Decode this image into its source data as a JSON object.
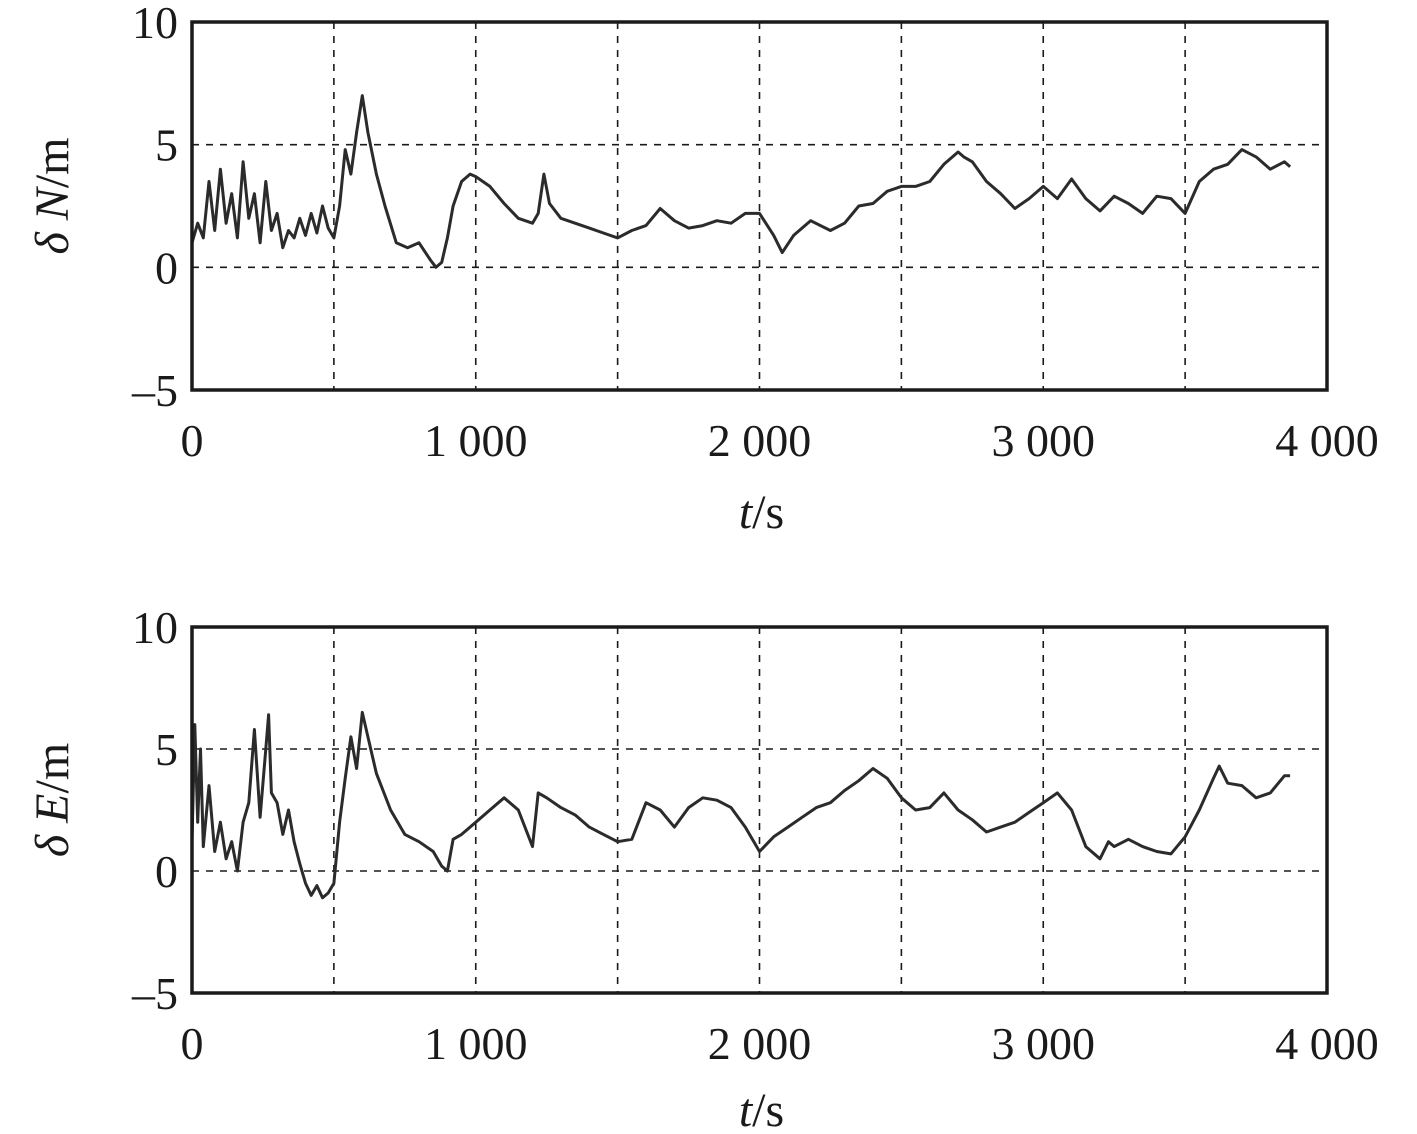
{
  "chart_data": [
    {
      "type": "line",
      "ylabel_symbol": "δ",
      "ylabel_var": "N",
      "ylabel_unit": "/m",
      "xlabel_var": "t",
      "xlabel_unit": "/s",
      "xlim": [
        0,
        4000
      ],
      "ylim": [
        -5,
        10
      ],
      "xticks": [
        0,
        1000,
        2000,
        3000,
        4000
      ],
      "xtick_labels": [
        "0",
        "1 000",
        "2 000",
        "3 000",
        "4 000"
      ],
      "yticks": [
        -5,
        0,
        5,
        10
      ],
      "ytick_labels": [
        "–5",
        "0",
        "5",
        "10"
      ],
      "grid_x": [
        500,
        1000,
        1500,
        2000,
        2500,
        3000,
        3500
      ],
      "grid_y": [
        0,
        5
      ],
      "grid": true,
      "series": [
        {
          "x": [
            0,
            20,
            40,
            60,
            80,
            100,
            120,
            140,
            160,
            180,
            200,
            220,
            240,
            260,
            280,
            300,
            320,
            340,
            360,
            380,
            400,
            420,
            440,
            460,
            480,
            500,
            520,
            540,
            560,
            580,
            600,
            620,
            650,
            680,
            720,
            760,
            800,
            840,
            860,
            880,
            900,
            920,
            950,
            980,
            1000,
            1050,
            1100,
            1150,
            1200,
            1220,
            1240,
            1260,
            1300,
            1350,
            1400,
            1450,
            1500,
            1550,
            1600,
            1650,
            1700,
            1750,
            1800,
            1850,
            1900,
            1950,
            2000,
            2050,
            2080,
            2120,
            2180,
            2250,
            2300,
            2350,
            2400,
            2450,
            2500,
            2550,
            2600,
            2650,
            2700,
            2720,
            2750,
            2800,
            2850,
            2900,
            2950,
            3000,
            3050,
            3100,
            3150,
            3200,
            3250,
            3300,
            3350,
            3400,
            3450,
            3500,
            3550,
            3600,
            3650,
            3700,
            3750,
            3800,
            3850,
            3870
          ],
          "y": [
            1.0,
            1.8,
            1.2,
            3.5,
            1.5,
            4.0,
            1.8,
            3.0,
            1.2,
            4.3,
            2.0,
            3.0,
            1.0,
            3.5,
            1.5,
            2.2,
            0.8,
            1.5,
            1.2,
            2.0,
            1.3,
            2.2,
            1.4,
            2.5,
            1.6,
            1.2,
            2.5,
            4.8,
            3.8,
            5.5,
            7.0,
            5.5,
            3.8,
            2.5,
            1.0,
            0.8,
            1.0,
            0.3,
            0.0,
            0.2,
            1.2,
            2.5,
            3.5,
            3.8,
            3.7,
            3.3,
            2.6,
            2.0,
            1.8,
            2.2,
            3.8,
            2.6,
            2.0,
            1.8,
            1.6,
            1.4,
            1.2,
            1.5,
            1.7,
            2.4,
            1.9,
            1.6,
            1.7,
            1.9,
            1.8,
            2.2,
            2.2,
            1.3,
            0.6,
            1.3,
            1.9,
            1.5,
            1.8,
            2.5,
            2.6,
            3.1,
            3.3,
            3.3,
            3.5,
            4.2,
            4.7,
            4.5,
            4.3,
            3.5,
            3.0,
            2.4,
            2.8,
            3.3,
            2.8,
            3.6,
            2.8,
            2.3,
            2.9,
            2.6,
            2.2,
            2.9,
            2.8,
            2.2,
            3.5,
            4.0,
            4.2,
            4.8,
            4.5,
            4.0,
            4.3,
            4.1
          ]
        }
      ]
    },
    {
      "type": "line",
      "ylabel_symbol": "δ",
      "ylabel_var": "E",
      "ylabel_unit": "/m",
      "xlabel_var": "t",
      "xlabel_unit": "/s",
      "xlim": [
        0,
        4000
      ],
      "ylim": [
        -5,
        10
      ],
      "xticks": [
        0,
        1000,
        2000,
        3000,
        4000
      ],
      "xtick_labels": [
        "0",
        "1 000",
        "2 000",
        "3 000",
        "4 000"
      ],
      "yticks": [
        -5,
        0,
        5,
        10
      ],
      "ytick_labels": [
        "–5",
        "0",
        "5",
        "10"
      ],
      "grid_x": [
        500,
        1000,
        1500,
        2000,
        2500,
        3000,
        3500
      ],
      "grid_y": [
        0,
        5
      ],
      "grid": true,
      "series": [
        {
          "x": [
            0,
            10,
            20,
            30,
            40,
            60,
            80,
            100,
            120,
            140,
            160,
            180,
            200,
            220,
            240,
            260,
            270,
            280,
            300,
            320,
            340,
            360,
            380,
            400,
            420,
            440,
            460,
            480,
            500,
            520,
            540,
            560,
            580,
            600,
            620,
            650,
            700,
            750,
            800,
            850,
            880,
            900,
            920,
            950,
            1000,
            1050,
            1100,
            1150,
            1200,
            1220,
            1250,
            1300,
            1350,
            1400,
            1450,
            1500,
            1550,
            1600,
            1650,
            1700,
            1750,
            1800,
            1850,
            1900,
            1950,
            2000,
            2050,
            2100,
            2150,
            2200,
            2250,
            2300,
            2350,
            2400,
            2450,
            2500,
            2550,
            2600,
            2650,
            2700,
            2750,
            2800,
            2850,
            2900,
            2950,
            3000,
            3050,
            3100,
            3150,
            3200,
            3230,
            3250,
            3300,
            3350,
            3400,
            3450,
            3500,
            3550,
            3600,
            3620,
            3650,
            3700,
            3750,
            3800,
            3850,
            3870
          ],
          "y": [
            1.2,
            6.0,
            2.0,
            5.0,
            1.0,
            3.5,
            0.8,
            2.0,
            0.5,
            1.2,
            0.0,
            2.0,
            2.8,
            5.8,
            2.2,
            5.0,
            6.4,
            3.2,
            2.8,
            1.5,
            2.5,
            1.2,
            0.3,
            -0.5,
            -1.0,
            -0.6,
            -1.1,
            -0.9,
            -0.5,
            2.0,
            3.8,
            5.5,
            4.2,
            6.5,
            5.5,
            4.0,
            2.5,
            1.5,
            1.2,
            0.8,
            0.2,
            0.0,
            1.3,
            1.5,
            2.0,
            2.5,
            3.0,
            2.5,
            1.0,
            3.2,
            3.0,
            2.6,
            2.3,
            1.8,
            1.5,
            1.2,
            1.3,
            2.8,
            2.5,
            1.8,
            2.6,
            3.0,
            2.9,
            2.6,
            1.8,
            0.8,
            1.4,
            1.8,
            2.2,
            2.6,
            2.8,
            3.3,
            3.7,
            4.2,
            3.8,
            3.0,
            2.5,
            2.6,
            3.2,
            2.5,
            2.1,
            1.6,
            1.8,
            2.0,
            2.4,
            2.8,
            3.2,
            2.5,
            1.0,
            0.5,
            1.2,
            1.0,
            1.3,
            1.0,
            0.8,
            0.7,
            1.4,
            2.5,
            3.8,
            4.3,
            3.6,
            3.5,
            3.0,
            3.2,
            3.9,
            3.9
          ]
        }
      ]
    }
  ]
}
